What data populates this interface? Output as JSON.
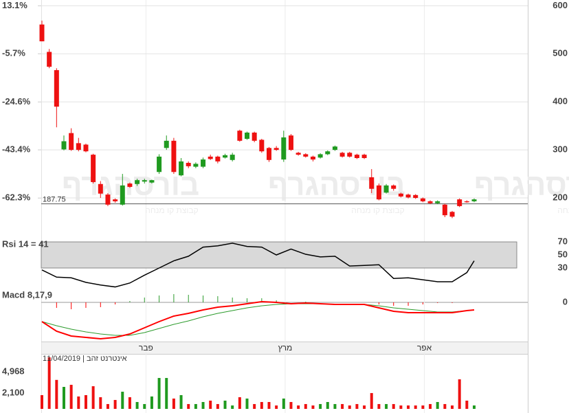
{
  "chart_data": [
    {
      "type": "candlestick",
      "open": [
        561,
        504,
        466,
        301,
        335,
        314,
        311,
        290,
        229,
        207,
        197,
        186,
        230,
        229,
        234,
        232,
        254,
        304,
        319,
        247,
        273,
        265,
        265,
        286,
        286,
        284,
        279,
        340,
        323,
        336,
        321,
        304,
        304,
        280,
        330,
        294,
        291,
        286,
        284,
        291,
        300,
        294,
        294,
        290,
        290,
        243,
        226,
        211,
        226,
        209,
        207,
        206,
        199,
        193,
        189,
        186,
        171,
        197,
        193,
        193
      ],
      "high": [
        569,
        510,
        470,
        330,
        345,
        325,
        313,
        292,
        235,
        210,
        199,
        250,
        232,
        240,
        240,
        238,
        291,
        330,
        325,
        283,
        276,
        274,
        284,
        290,
        288,
        292,
        294,
        342,
        338,
        338,
        323,
        306,
        308,
        340,
        333,
        296,
        293,
        288,
        293,
        299,
        309,
        296,
        296,
        292,
        292,
        260,
        230,
        229,
        228,
        211,
        209,
        208,
        201,
        195,
        195,
        188,
        173,
        199,
        195,
        199
      ],
      "low": [
        526,
        470,
        347,
        299,
        298,
        297,
        295,
        230,
        200,
        183,
        190,
        184,
        221,
        225,
        230,
        230,
        250,
        300,
        250,
        245,
        262,
        262,
        262,
        279,
        272,
        282,
        276,
        317,
        321,
        316,
        294,
        275,
        298,
        275,
        298,
        288,
        284,
        276,
        282,
        289,
        298,
        284,
        284,
        281,
        281,
        210,
        195,
        209,
        215,
        201,
        199,
        198,
        191,
        187,
        187,
        160,
        158,
        181,
        190,
        191
      ],
      "close": [
        526,
        473,
        390,
        318,
        300,
        300,
        297,
        233,
        209,
        186,
        193,
        226,
        223,
        237,
        237,
        237,
        286,
        319,
        254,
        276,
        266,
        271,
        280,
        281,
        276,
        289,
        290,
        319,
        336,
        319,
        297,
        279,
        300,
        326,
        300,
        290,
        286,
        280,
        291,
        297,
        307,
        286,
        286,
        283,
        283,
        219,
        197,
        226,
        219,
        203,
        201,
        200,
        193,
        189,
        193,
        164,
        161,
        183,
        191,
        197
      ],
      "up_color": "#1f9a1f",
      "down_color": "#ee1111",
      "xlim": [
        0,
        59
      ],
      "ylim": [
        160,
        612
      ],
      "yticks": [
        600,
        500,
        400,
        300,
        200
      ],
      "y2lim": [
        -69.8,
        15.4
      ],
      "y2ticks": [
        {
          "value": 13.1,
          "label": "13.1%"
        },
        {
          "value": -5.7,
          "label": "-5.7%"
        },
        {
          "value": -24.6,
          "label": "-24.6%"
        },
        {
          "value": -43.4,
          "label": "-43.4%"
        },
        {
          "value": -62.3,
          "label": "-62.3%"
        }
      ],
      "grid": true,
      "reference_line": 187.75,
      "watermark": "בורסהגרף",
      "watermark_subtitle": "קבוצת קו מנחה"
    },
    {
      "type": "line",
      "title": "Rsi 14 = 41",
      "x": [
        0,
        2,
        4,
        6,
        8,
        10,
        12,
        14,
        16,
        18,
        20,
        22,
        24,
        26,
        28,
        30,
        32,
        34,
        36,
        38,
        40,
        42,
        44,
        46,
        48,
        50,
        52,
        54,
        56,
        58,
        59
      ],
      "series": [
        {
          "color": "#000000",
          "values": [
            27,
            16,
            15,
            8,
            4,
            1,
            7,
            19,
            30,
            41,
            48,
            62,
            64,
            68,
            63,
            62,
            50,
            59,
            51,
            47,
            48,
            33,
            34,
            35,
            14,
            15,
            12,
            9,
            9,
            23,
            41
          ]
        }
      ],
      "xlim": [
        0,
        59
      ],
      "ylim": [
        0,
        100
      ],
      "yticks": [
        70,
        50,
        30
      ],
      "band": [
        30,
        70
      ],
      "band_color": "#d9d9d9"
    },
    {
      "type": "macd",
      "title": "Macd 8,17,9",
      "x": [
        0,
        2,
        4,
        6,
        8,
        10,
        12,
        14,
        16,
        18,
        20,
        22,
        24,
        26,
        28,
        30,
        32,
        34,
        36,
        38,
        40,
        42,
        44,
        46,
        48,
        50,
        52,
        54,
        56,
        58,
        59
      ],
      "macd": {
        "color": "#ff0000",
        "values": [
          -28,
          -42,
          -49,
          -51,
          -53,
          -51,
          -46,
          -37,
          -28,
          -20,
          -16,
          -11,
          -7,
          -5,
          -2,
          1,
          0,
          -2,
          -1,
          -2,
          -3,
          -3,
          -3,
          -8,
          -13,
          -15,
          -15,
          -15,
          -15,
          -12,
          -11
        ]
      },
      "signal": {
        "color": "#2a9a2a",
        "values": [
          -28,
          -34,
          -39,
          -43,
          -46,
          -48,
          -48,
          -44,
          -38,
          -32,
          -27,
          -21,
          -16,
          -12,
          -8,
          -5,
          -3,
          -2,
          -2,
          -2,
          -3,
          -3,
          -3,
          -5,
          -8,
          -10,
          -12,
          -14,
          -14,
          -12,
          -11
        ]
      },
      "histogram": {
        "values": [
          0,
          -8,
          -10,
          -8,
          -7,
          -3,
          2,
          7,
          10,
          12,
          11,
          10,
          9,
          7,
          6,
          6,
          3,
          0,
          1,
          0,
          0,
          0,
          0,
          -3,
          -5,
          -5,
          -3,
          -1,
          -1,
          0,
          0
        ]
      },
      "up_color": "#2a9a2a",
      "down_color": "#ff0000",
      "xlim": [
        0,
        59
      ],
      "ylim": [
        -60,
        10
      ],
      "yticks": [
        0
      ],
      "xticks": [
        {
          "value": 14.2,
          "label": "פבר"
        },
        {
          "value": 33.2,
          "label": "מרץ"
        },
        {
          "value": 52.2,
          "label": "אפר"
        }
      ]
    },
    {
      "type": "bar",
      "title": "11/04/2019 | אינטרנט זהב",
      "values": [
        1850,
        6940,
        3900,
        2960,
        3240,
        1670,
        1850,
        3050,
        1570,
        650,
        1200,
        2310,
        1570,
        925,
        650,
        1670,
        4160,
        4160,
        1390,
        1850,
        650,
        650,
        925,
        1110,
        650,
        1110,
        460,
        1570,
        1390,
        650,
        925,
        925,
        460,
        1390,
        925,
        460,
        650,
        460,
        650,
        925,
        650,
        650,
        460,
        650,
        460,
        2130,
        650,
        650,
        650,
        460,
        460,
        460,
        460,
        650,
        925,
        650,
        460,
        3980,
        1110,
        460
      ],
      "up_color": "#1f9a1f",
      "down_color": "#ee1111",
      "xlim": [
        0,
        59
      ],
      "ylim": [
        0,
        7400
      ],
      "yticks": [
        {
          "value": 4968,
          "label": "4,968"
        },
        {
          "value": 2100,
          "label": "2,100"
        }
      ]
    }
  ]
}
